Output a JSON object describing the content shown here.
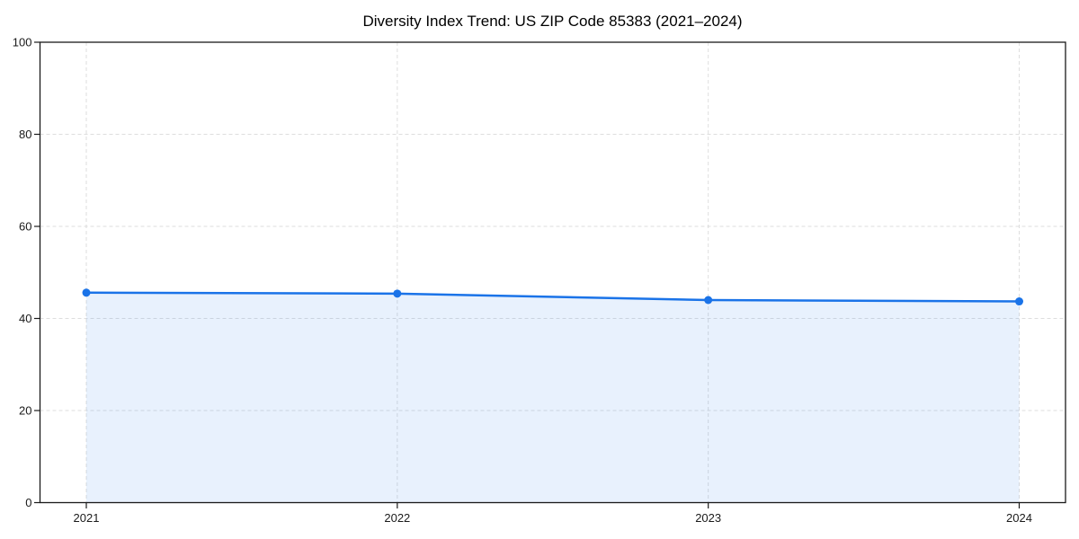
{
  "chart_data": {
    "type": "line",
    "title": "Diversity Index Trend: US ZIP Code 85383 (2021–2024)",
    "x": [
      "2021",
      "2022",
      "2023",
      "2024"
    ],
    "series": [
      {
        "name": "Diversity Index",
        "values": [
          45.6,
          45.4,
          44.0,
          43.7
        ]
      }
    ],
    "xlabel": "",
    "ylabel": "",
    "ylim": [
      0,
      100
    ],
    "yticks": [
      0,
      20,
      40,
      60,
      80,
      100
    ],
    "grid": "dashed both",
    "legend_position": "none",
    "area_fill": true,
    "marker": "circle",
    "colors": {
      "line": "#1a73e8",
      "marker": "#1a73e8",
      "fill": "rgba(26,115,232,0.10)",
      "grid": "#d9d9d9",
      "spine": "#1a1a1a",
      "tick_label": "#1a1a1a",
      "title": "#000000",
      "background": "#ffffff"
    }
  }
}
